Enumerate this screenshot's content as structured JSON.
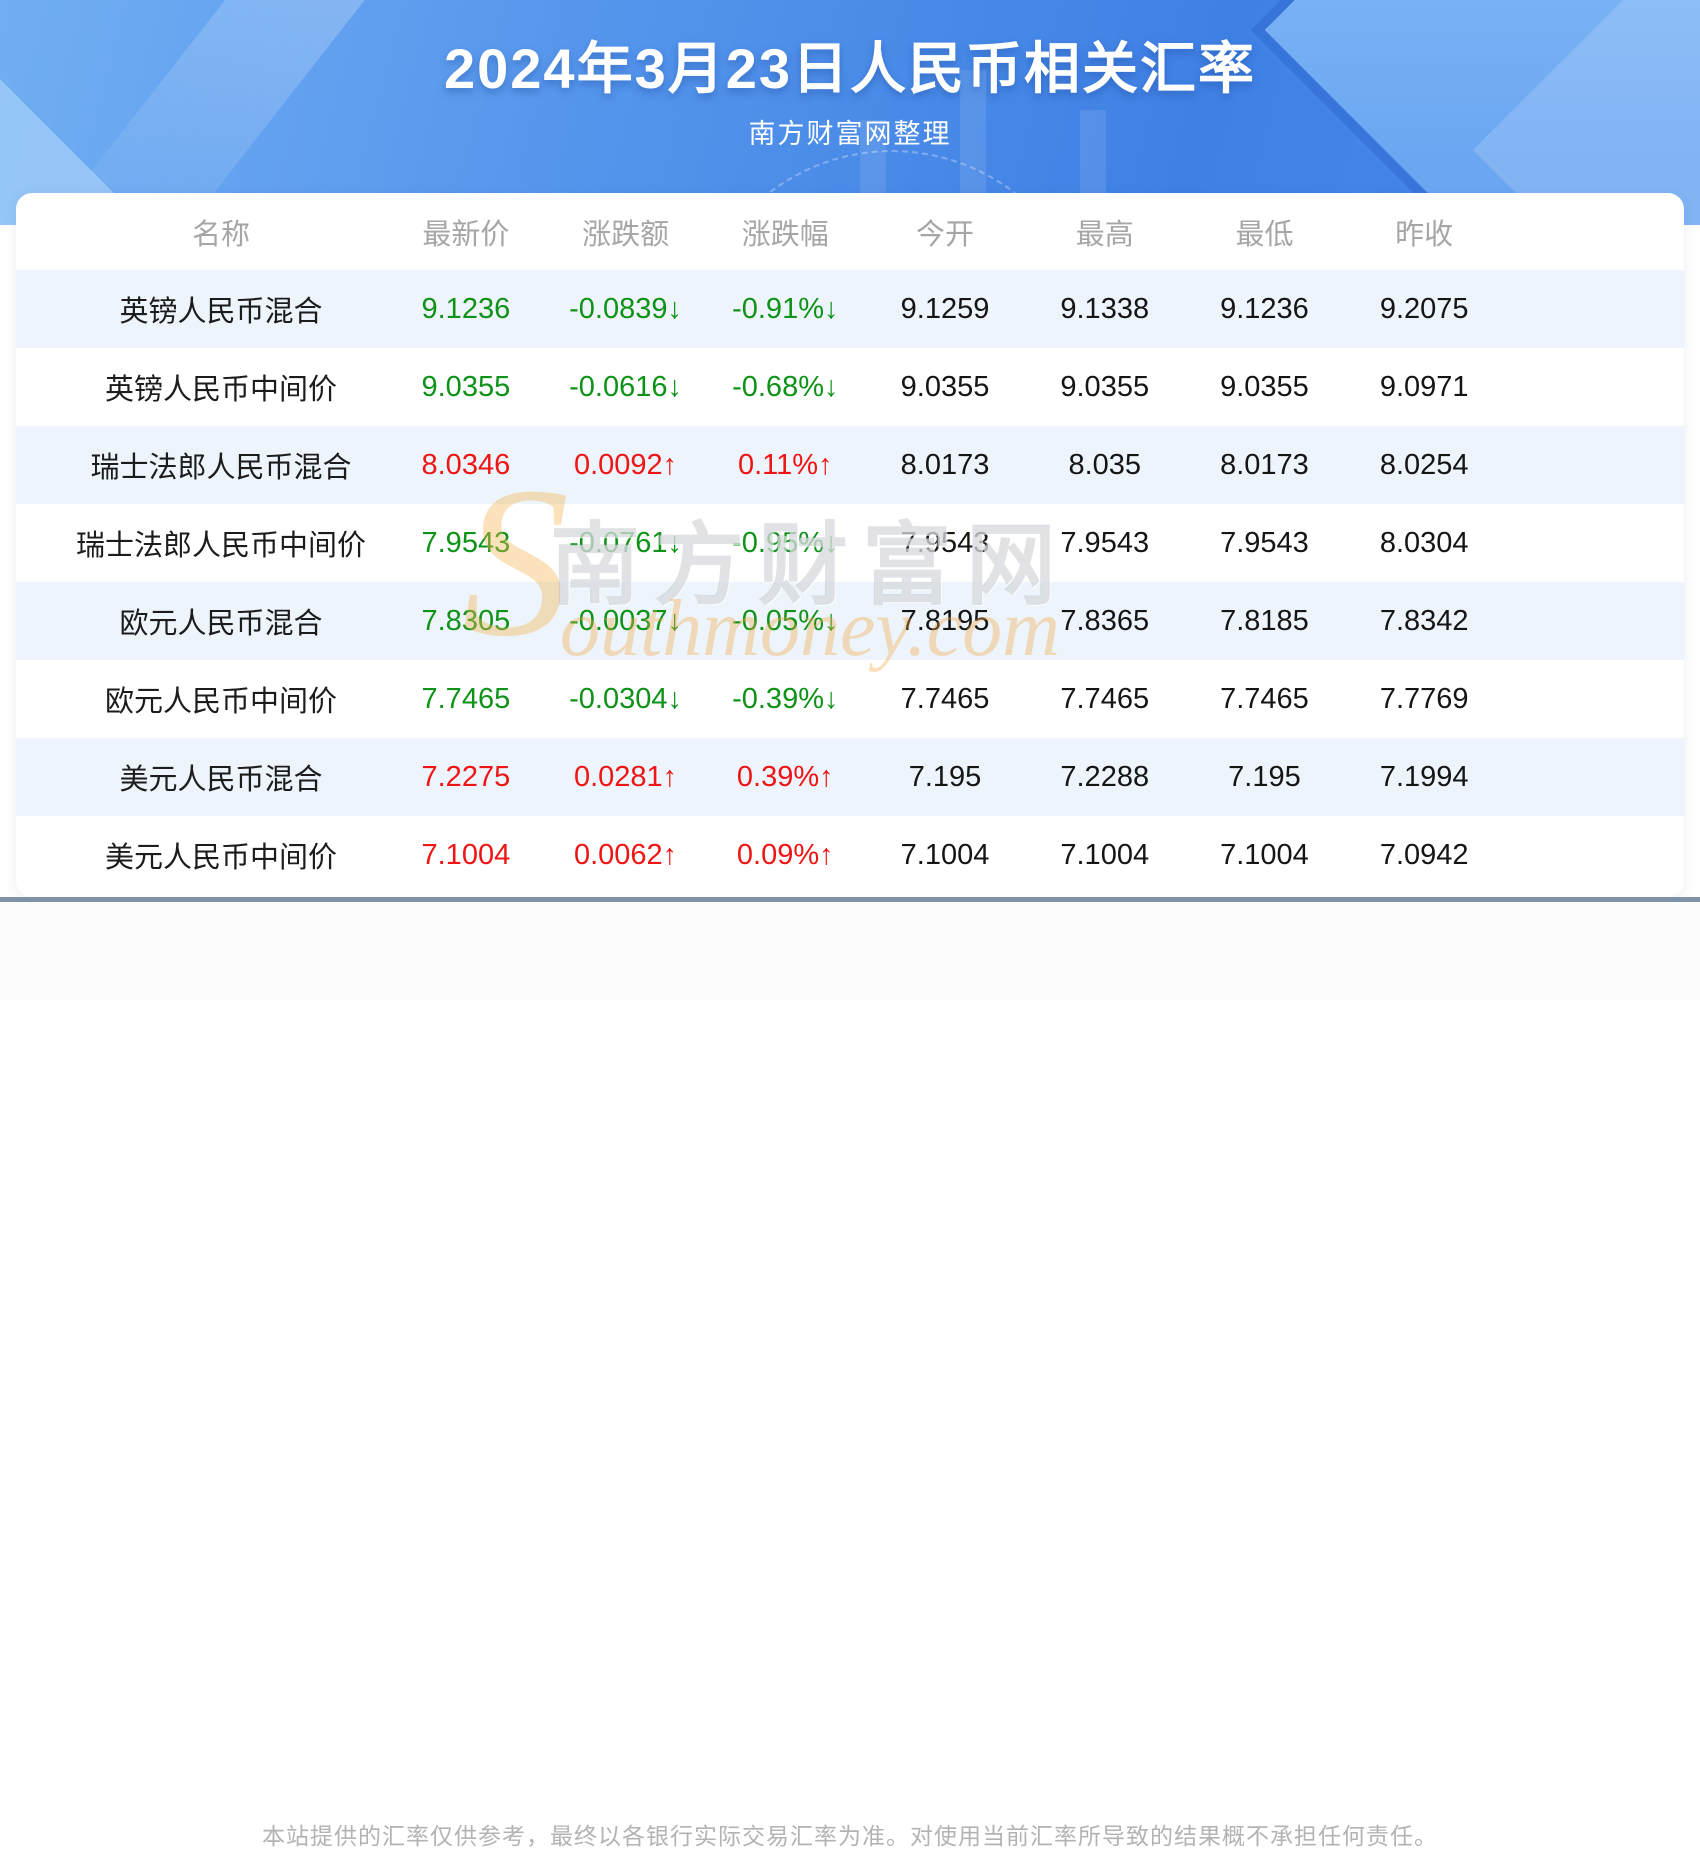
{
  "header": {
    "title": "2024年3月23日人民币相关汇率",
    "subtitle": "南方财富网整理"
  },
  "watermark": {
    "initial": "S",
    "cn": "南方财富网",
    "en": "outhmoney.com"
  },
  "table": {
    "columns": [
      "名称",
      "最新价",
      "涨跌额",
      "涨跌幅",
      "今开",
      "最高",
      "最低",
      "昨收"
    ],
    "rows": [
      {
        "name": "英镑人民币混合",
        "latest": "9.1236",
        "change": "-0.0839↓",
        "change_pct": "-0.91%↓",
        "open": "9.1259",
        "high": "9.1338",
        "low": "9.1236",
        "prev_close": "9.2075",
        "trend": "down"
      },
      {
        "name": "英镑人民币中间价",
        "latest": "9.0355",
        "change": "-0.0616↓",
        "change_pct": "-0.68%↓",
        "open": "9.0355",
        "high": "9.0355",
        "low": "9.0355",
        "prev_close": "9.0971",
        "trend": "down"
      },
      {
        "name": "瑞士法郎人民币混合",
        "latest": "8.0346",
        "change": "0.0092↑",
        "change_pct": "0.11%↑",
        "open": "8.0173",
        "high": "8.035",
        "low": "8.0173",
        "prev_close": "8.0254",
        "trend": "up"
      },
      {
        "name": "瑞士法郎人民币中间价",
        "latest": "7.9543",
        "change": "-0.0761↓",
        "change_pct": "-0.95%↓",
        "open": "7.9543",
        "high": "7.9543",
        "low": "7.9543",
        "prev_close": "8.0304",
        "trend": "down"
      },
      {
        "name": "欧元人民币混合",
        "latest": "7.8305",
        "change": "-0.0037↓",
        "change_pct": "-0.05%↓",
        "open": "7.8195",
        "high": "7.8365",
        "low": "7.8185",
        "prev_close": "7.8342",
        "trend": "down"
      },
      {
        "name": "欧元人民币中间价",
        "latest": "7.7465",
        "change": "-0.0304↓",
        "change_pct": "-0.39%↓",
        "open": "7.7465",
        "high": "7.7465",
        "low": "7.7465",
        "prev_close": "7.7769",
        "trend": "down"
      },
      {
        "name": "美元人民币混合",
        "latest": "7.2275",
        "change": "0.0281↑",
        "change_pct": "0.39%↑",
        "open": "7.195",
        "high": "7.2288",
        "low": "7.195",
        "prev_close": "7.1994",
        "trend": "up"
      },
      {
        "name": "美元人民币中间价",
        "latest": "7.1004",
        "change": "0.0062↑",
        "change_pct": "0.09%↑",
        "open": "7.1004",
        "high": "7.1004",
        "low": "7.1004",
        "prev_close": "7.0942",
        "trend": "up"
      }
    ]
  },
  "footer": {
    "disclaimer": "本站提供的汇率仅供参考，最终以各银行实际交易汇率为准。对使用当前汇率所导致的结果概不承担任何责任。"
  },
  "colors": {
    "up": "#ef1515",
    "down": "#0e9318",
    "banner_blue": "#4a89e8",
    "row_alt": "#edf4fb",
    "divider": "#7e93a8"
  }
}
